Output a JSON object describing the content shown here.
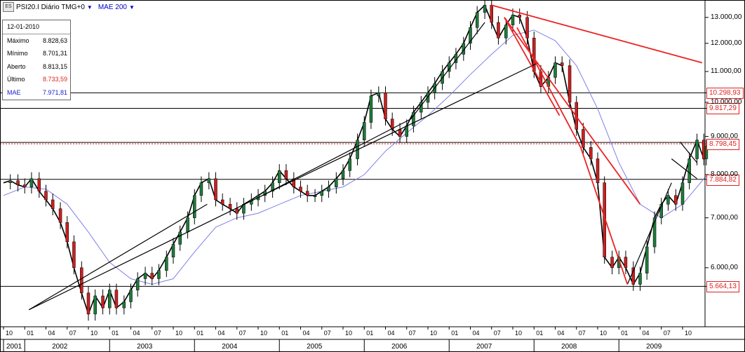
{
  "header": {
    "symbol": "PSI20.I Diário TMG+0",
    "indicator": "MAE 200",
    "arrow": "▼"
  },
  "info_panel": {
    "date": "12-01-2010",
    "rows": [
      {
        "label": "Máximo",
        "value": "8.828,63",
        "color": "#000000"
      },
      {
        "label": "Mínimo",
        "value": "8.701,31",
        "color": "#000000"
      },
      {
        "label": "Aberto",
        "value": "8.813,15",
        "color": "#000000"
      },
      {
        "label": "Último",
        "value": "8.733,59",
        "color": "#dd2222"
      },
      {
        "label": "MAE",
        "value": "7.971,81",
        "color": "#1a1acc"
      }
    ]
  },
  "price_tags": [
    {
      "label": "10.298,93",
      "value": 10298.93,
      "style": "red"
    },
    {
      "label": "9.817,29",
      "value": 9817.29,
      "style": "red"
    },
    {
      "label": "8.798,45",
      "value": 8798.45,
      "style": "red"
    },
    {
      "label": "7.884,82",
      "value": 7884.82,
      "style": "red"
    },
    {
      "label": "5.664,13",
      "value": 5664.13,
      "style": "red"
    }
  ],
  "colors": {
    "up_candle": "#1f7a3a",
    "down_candle": "#cc1f1f",
    "moving_average": "#7f7fe8",
    "trendline_black": "#000000",
    "trendline_red": "#ee2222",
    "dotted_last": "#dd2222"
  },
  "chart_data": {
    "type": "line",
    "title": "PSI20.I Diário TMG+0",
    "scale": "log",
    "ylim": [
      5000,
      13600
    ],
    "y_ticks": [
      {
        "value": 6000,
        "label": "6.000,00"
      },
      {
        "value": 7000,
        "label": "7.000,00"
      },
      {
        "value": 8000,
        "label": "8.000,00"
      },
      {
        "value": 9000,
        "label": "9.000,00"
      },
      {
        "value": 10000,
        "label": "10.000,00"
      },
      {
        "value": 11000,
        "label": "11.000,00"
      },
      {
        "value": 12000,
        "label": "12.000,00"
      },
      {
        "value": 13000,
        "label": "13.000,00"
      }
    ],
    "x_range": [
      2001.75,
      2010.09
    ],
    "month_ticks": [
      "10",
      "01",
      "04",
      "07",
      "10",
      "01",
      "04",
      "07",
      "10",
      "01",
      "04",
      "07",
      "10",
      "01",
      "04",
      "07",
      "10",
      "01",
      "04",
      "07",
      "10",
      "01",
      "04",
      "07",
      "10",
      "01",
      "04",
      "07",
      "10",
      "01",
      "04",
      "07",
      "10"
    ],
    "year_ticks": [
      {
        "label": "2001",
        "t": 2001.75
      },
      {
        "label": "2002",
        "t": 2002.0
      },
      {
        "label": "2003",
        "t": 2003.0
      },
      {
        "label": "2004",
        "t": 2004.0
      },
      {
        "label": "2005",
        "t": 2005.0
      },
      {
        "label": "2006",
        "t": 2006.0
      },
      {
        "label": "2007",
        "t": 2007.0
      },
      {
        "label": "2008",
        "t": 2008.0
      },
      {
        "label": "2009",
        "t": 2009.0
      }
    ],
    "series": [
      {
        "name": "PSI20.I",
        "x": [
          2001.75,
          2001.83,
          2001.92,
          2002.0,
          2002.08,
          2002.17,
          2002.25,
          2002.33,
          2002.42,
          2002.5,
          2002.58,
          2002.67,
          2002.75,
          2002.83,
          2002.92,
          2003.0,
          2003.08,
          2003.17,
          2003.25,
          2003.33,
          2003.42,
          2003.5,
          2003.58,
          2003.67,
          2003.75,
          2003.83,
          2003.92,
          2004.0,
          2004.08,
          2004.17,
          2004.25,
          2004.33,
          2004.42,
          2004.5,
          2004.58,
          2004.67,
          2004.75,
          2004.83,
          2004.92,
          2005.0,
          2005.08,
          2005.17,
          2005.25,
          2005.33,
          2005.42,
          2005.5,
          2005.58,
          2005.67,
          2005.75,
          2005.83,
          2005.92,
          2006.0,
          2006.08,
          2006.17,
          2006.25,
          2006.33,
          2006.42,
          2006.5,
          2006.58,
          2006.67,
          2006.75,
          2006.83,
          2006.92,
          2007.0,
          2007.08,
          2007.17,
          2007.25,
          2007.33,
          2007.42,
          2007.5,
          2007.58,
          2007.67,
          2007.75,
          2007.83,
          2007.92,
          2008.0,
          2008.08,
          2008.17,
          2008.25,
          2008.33,
          2008.42,
          2008.5,
          2008.58,
          2008.67,
          2008.75,
          2008.83,
          2008.92,
          2009.0,
          2009.08,
          2009.17,
          2009.25,
          2009.33,
          2009.42,
          2009.5,
          2009.58,
          2009.67,
          2009.75,
          2009.83,
          2009.92,
          2010.0,
          2010.03
        ],
        "values": [
          7800,
          7850,
          7750,
          7700,
          7900,
          7600,
          7400,
          7200,
          6900,
          6500,
          6000,
          5550,
          5200,
          5500,
          5300,
          5600,
          5300,
          5400,
          5600,
          5800,
          5900,
          5800,
          5950,
          6200,
          6450,
          6700,
          7000,
          7500,
          7800,
          7900,
          7400,
          7300,
          7200,
          7100,
          7300,
          7400,
          7500,
          7600,
          7800,
          8100,
          7900,
          7700,
          7600,
          7500,
          7500,
          7600,
          7700,
          7900,
          8100,
          8400,
          8900,
          9400,
          10200,
          10300,
          9500,
          9200,
          9000,
          9300,
          9700,
          10000,
          10300,
          10600,
          11000,
          11300,
          11600,
          12000,
          12600,
          13200,
          13500,
          12800,
          12200,
          12700,
          13100,
          13000,
          12200,
          11000,
          10500,
          10800,
          11300,
          11200,
          10000,
          9200,
          8700,
          8400,
          7800,
          6200,
          6000,
          6200,
          6000,
          5700,
          5900,
          6400,
          7000,
          7300,
          7500,
          7300,
          7800,
          8400,
          8900,
          8400,
          8733.59
        ]
      },
      {
        "name": "MAE 200",
        "x": [
          2001.75,
          2002.0,
          2002.25,
          2002.5,
          2002.75,
          2003.0,
          2003.25,
          2003.5,
          2003.75,
          2004.0,
          2004.25,
          2004.5,
          2004.75,
          2005.0,
          2005.25,
          2005.5,
          2005.75,
          2006.0,
          2006.25,
          2006.5,
          2006.75,
          2007.0,
          2007.25,
          2007.5,
          2007.75,
          2008.0,
          2008.25,
          2008.5,
          2008.75,
          2009.0,
          2009.25,
          2009.5,
          2009.75,
          2010.03
        ],
        "values": [
          7500,
          7700,
          7650,
          7300,
          6700,
          6100,
          5800,
          5700,
          5800,
          6300,
          6800,
          7000,
          7100,
          7300,
          7500,
          7600,
          7700,
          8000,
          8600,
          9100,
          9600,
          10200,
          10900,
          11600,
          12300,
          12500,
          12100,
          11200,
          9800,
          8300,
          7300,
          7000,
          7300,
          7971.81
        ]
      }
    ],
    "horizontal_levels": [
      10298.93,
      9817.29,
      8798.45,
      7884.82,
      5664.13
    ],
    "trendlines_black": [
      {
        "from": [
          2002.05,
          5270
        ],
        "to": [
          2004.15,
          7300
        ]
      },
      {
        "from": [
          2002.05,
          5270
        ],
        "to": [
          2004.8,
          7500
        ]
      },
      {
        "from": [
          2004.8,
          7500
        ],
        "to": [
          2008.05,
          11300
        ]
      },
      {
        "from": [
          2004.8,
          7500
        ],
        "to": [
          2006.55,
          9500
        ]
      },
      {
        "from": [
          2006.55,
          9500
        ],
        "to": [
          2007.42,
          12800
        ]
      },
      {
        "from": [
          2009.1,
          5700
        ],
        "to": [
          2009.62,
          7800
        ]
      },
      {
        "from": [
          2009.62,
          8400
        ],
        "to": [
          2009.92,
          7900
        ]
      },
      {
        "from": [
          2009.72,
          8850
        ],
        "to": [
          2009.92,
          8300
        ]
      }
    ],
    "trendlines_red": [
      {
        "from": [
          2007.5,
          13500
        ],
        "to": [
          2009.98,
          11300
        ]
      },
      {
        "from": [
          2007.65,
          13000
        ],
        "to": [
          2008.3,
          9600
        ]
      },
      {
        "from": [
          2007.65,
          13000
        ],
        "to": [
          2009.25,
          7300
        ]
      },
      {
        "from": [
          2007.8,
          12600
        ],
        "to": [
          2008.55,
          8700
        ]
      },
      {
        "from": [
          2008.55,
          8700
        ],
        "to": [
          2009.1,
          5700
        ]
      }
    ]
  }
}
